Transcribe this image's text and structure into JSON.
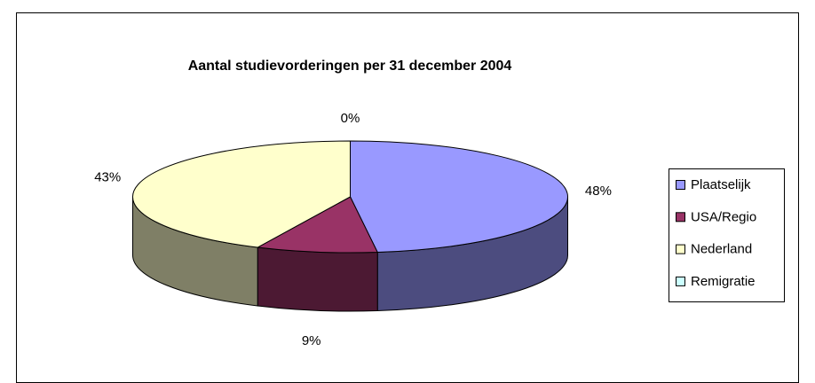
{
  "chart_data": {
    "type": "pie",
    "title": "Aantal studievorderingen per 31 december 2004",
    "categories": [
      "Plaatselijk",
      "USA/Regio",
      "Nederland",
      "Remigratie"
    ],
    "values": [
      48,
      9,
      43,
      0
    ],
    "value_labels": [
      "48%",
      "9%",
      "43%",
      "0%"
    ],
    "colors": [
      "#9999ff",
      "#993366",
      "#ffffcc",
      "#ccffff"
    ],
    "legend": "right"
  }
}
